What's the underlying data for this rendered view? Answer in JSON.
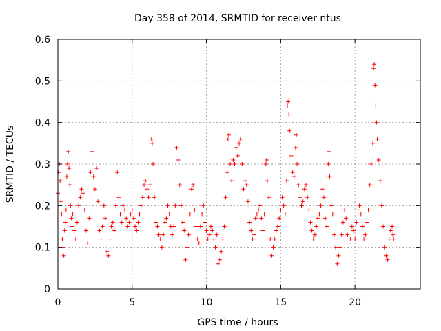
{
  "chart_data": {
    "type": "scatter",
    "title": "Day 358 of 2014, SRMTID for receiver ntus",
    "xlabel": "GPS time / hours",
    "ylabel": "SRMTID / TECUs",
    "xlim": [
      0,
      24.4
    ],
    "ylim": [
      0,
      0.6
    ],
    "xticks": [
      0,
      5,
      10,
      15,
      20
    ],
    "yticks": [
      0,
      0.1,
      0.2,
      0.3,
      0.4,
      0.5,
      0.6
    ],
    "xtick_labels": [
      "0",
      "5",
      "10",
      "15",
      "20"
    ],
    "ytick_labels": [
      "0",
      "0.1",
      "0.2",
      "0.3",
      "0.4",
      "0.5",
      "0.6"
    ],
    "grid": true,
    "marker": "+",
    "marker_color": "#ff0000",
    "series": [
      {
        "name": "ntus",
        "points": [
          [
            0.0,
            0.23
          ],
          [
            0.05,
            0.28
          ],
          [
            0.1,
            0.3
          ],
          [
            0.15,
            0.26
          ],
          [
            0.2,
            0.21
          ],
          [
            0.25,
            0.18
          ],
          [
            0.3,
            0.12
          ],
          [
            0.35,
            0.1
          ],
          [
            0.4,
            0.08
          ],
          [
            0.45,
            0.14
          ],
          [
            0.5,
            0.16
          ],
          [
            0.55,
            0.19
          ],
          [
            0.6,
            0.27
          ],
          [
            0.65,
            0.3
          ],
          [
            0.7,
            0.33
          ],
          [
            0.75,
            0.29
          ],
          [
            0.8,
            0.25
          ],
          [
            0.85,
            0.2
          ],
          [
            0.9,
            0.17
          ],
          [
            0.95,
            0.15
          ],
          [
            1.0,
            0.18
          ],
          [
            1.1,
            0.14
          ],
          [
            1.2,
            0.12
          ],
          [
            1.3,
            0.16
          ],
          [
            1.4,
            0.2
          ],
          [
            1.5,
            0.22
          ],
          [
            1.6,
            0.24
          ],
          [
            1.7,
            0.23
          ],
          [
            1.8,
            0.19
          ],
          [
            1.9,
            0.14
          ],
          [
            2.0,
            0.11
          ],
          [
            2.1,
            0.17
          ],
          [
            2.2,
            0.28
          ],
          [
            2.3,
            0.33
          ],
          [
            2.4,
            0.27
          ],
          [
            2.5,
            0.24
          ],
          [
            2.6,
            0.29
          ],
          [
            2.7,
            0.21
          ],
          [
            2.8,
            0.14
          ],
          [
            2.9,
            0.12
          ],
          [
            3.0,
            0.15
          ],
          [
            3.1,
            0.2
          ],
          [
            3.2,
            0.17
          ],
          [
            3.3,
            0.09
          ],
          [
            3.4,
            0.08
          ],
          [
            3.5,
            0.12
          ],
          [
            3.6,
            0.15
          ],
          [
            3.7,
            0.16
          ],
          [
            3.8,
            0.14
          ],
          [
            3.9,
            0.2
          ],
          [
            4.0,
            0.28
          ],
          [
            4.1,
            0.22
          ],
          [
            4.2,
            0.18
          ],
          [
            4.3,
            0.16
          ],
          [
            4.4,
            0.2
          ],
          [
            4.5,
            0.19
          ],
          [
            4.6,
            0.17
          ],
          [
            4.7,
            0.15
          ],
          [
            4.8,
            0.16
          ],
          [
            4.9,
            0.18
          ],
          [
            5.0,
            0.19
          ],
          [
            5.1,
            0.17
          ],
          [
            5.2,
            0.15
          ],
          [
            5.3,
            0.14
          ],
          [
            5.4,
            0.16
          ],
          [
            5.5,
            0.18
          ],
          [
            5.6,
            0.2
          ],
          [
            5.7,
            0.22
          ],
          [
            5.8,
            0.25
          ],
          [
            5.9,
            0.26
          ],
          [
            6.0,
            0.24
          ],
          [
            6.1,
            0.22
          ],
          [
            6.2,
            0.25
          ],
          [
            6.3,
            0.36
          ],
          [
            6.35,
            0.35
          ],
          [
            6.4,
            0.3
          ],
          [
            6.5,
            0.22
          ],
          [
            6.6,
            0.16
          ],
          [
            6.7,
            0.15
          ],
          [
            6.8,
            0.13
          ],
          [
            6.9,
            0.12
          ],
          [
            7.0,
            0.1
          ],
          [
            7.1,
            0.13
          ],
          [
            7.2,
            0.16
          ],
          [
            7.3,
            0.17
          ],
          [
            7.4,
            0.2
          ],
          [
            7.5,
            0.18
          ],
          [
            7.6,
            0.15
          ],
          [
            7.7,
            0.13
          ],
          [
            7.8,
            0.15
          ],
          [
            7.9,
            0.2
          ],
          [
            8.0,
            0.34
          ],
          [
            8.1,
            0.31
          ],
          [
            8.2,
            0.25
          ],
          [
            8.3,
            0.2
          ],
          [
            8.4,
            0.16
          ],
          [
            8.5,
            0.14
          ],
          [
            8.6,
            0.07
          ],
          [
            8.7,
            0.1
          ],
          [
            8.8,
            0.13
          ],
          [
            8.9,
            0.18
          ],
          [
            9.0,
            0.24
          ],
          [
            9.1,
            0.25
          ],
          [
            9.2,
            0.19
          ],
          [
            9.3,
            0.15
          ],
          [
            9.4,
            0.12
          ],
          [
            9.5,
            0.11
          ],
          [
            9.6,
            0.15
          ],
          [
            9.7,
            0.18
          ],
          [
            9.8,
            0.2
          ],
          [
            9.9,
            0.16
          ],
          [
            10.0,
            0.14
          ],
          [
            10.1,
            0.12
          ],
          [
            10.2,
            0.13
          ],
          [
            10.3,
            0.15
          ],
          [
            10.4,
            0.14
          ],
          [
            10.5,
            0.12
          ],
          [
            10.6,
            0.1
          ],
          [
            10.7,
            0.13
          ],
          [
            10.8,
            0.06
          ],
          [
            10.9,
            0.07
          ],
          [
            11.0,
            0.09
          ],
          [
            11.1,
            0.12
          ],
          [
            11.2,
            0.15
          ],
          [
            11.3,
            0.22
          ],
          [
            11.4,
            0.28
          ],
          [
            11.45,
            0.36
          ],
          [
            11.5,
            0.37
          ],
          [
            11.6,
            0.3
          ],
          [
            11.7,
            0.26
          ],
          [
            11.8,
            0.31
          ],
          [
            11.9,
            0.3
          ],
          [
            12.0,
            0.34
          ],
          [
            12.1,
            0.32
          ],
          [
            12.2,
            0.35
          ],
          [
            12.3,
            0.36
          ],
          [
            12.4,
            0.3
          ],
          [
            12.5,
            0.24
          ],
          [
            12.6,
            0.26
          ],
          [
            12.7,
            0.25
          ],
          [
            12.8,
            0.21
          ],
          [
            12.9,
            0.16
          ],
          [
            13.0,
            0.14
          ],
          [
            13.1,
            0.12
          ],
          [
            13.2,
            0.13
          ],
          [
            13.3,
            0.17
          ],
          [
            13.4,
            0.18
          ],
          [
            13.5,
            0.19
          ],
          [
            13.6,
            0.2
          ],
          [
            13.7,
            0.17
          ],
          [
            13.8,
            0.14
          ],
          [
            13.9,
            0.18
          ],
          [
            14.0,
            0.3
          ],
          [
            14.05,
            0.31
          ],
          [
            14.1,
            0.26
          ],
          [
            14.2,
            0.22
          ],
          [
            14.3,
            0.12
          ],
          [
            14.4,
            0.08
          ],
          [
            14.5,
            0.1
          ],
          [
            14.6,
            0.12
          ],
          [
            14.7,
            0.14
          ],
          [
            14.8,
            0.15
          ],
          [
            14.9,
            0.17
          ],
          [
            15.0,
            0.19
          ],
          [
            15.1,
            0.22
          ],
          [
            15.2,
            0.2
          ],
          [
            15.3,
            0.18
          ],
          [
            15.4,
            0.26
          ],
          [
            15.45,
            0.44
          ],
          [
            15.5,
            0.45
          ],
          [
            15.55,
            0.42
          ],
          [
            15.6,
            0.38
          ],
          [
            15.7,
            0.32
          ],
          [
            15.8,
            0.28
          ],
          [
            15.9,
            0.27
          ],
          [
            16.0,
            0.34
          ],
          [
            16.05,
            0.37
          ],
          [
            16.1,
            0.3
          ],
          [
            16.2,
            0.25
          ],
          [
            16.3,
            0.22
          ],
          [
            16.4,
            0.2
          ],
          [
            16.5,
            0.21
          ],
          [
            16.6,
            0.24
          ],
          [
            16.7,
            0.25
          ],
          [
            16.8,
            0.22
          ],
          [
            16.9,
            0.19
          ],
          [
            17.0,
            0.16
          ],
          [
            17.1,
            0.14
          ],
          [
            17.2,
            0.12
          ],
          [
            17.3,
            0.13
          ],
          [
            17.4,
            0.15
          ],
          [
            17.5,
            0.17
          ],
          [
            17.6,
            0.18
          ],
          [
            17.7,
            0.2
          ],
          [
            17.8,
            0.24
          ],
          [
            17.9,
            0.22
          ],
          [
            18.0,
            0.17
          ],
          [
            18.1,
            0.15
          ],
          [
            18.2,
            0.3
          ],
          [
            18.25,
            0.33
          ],
          [
            18.3,
            0.27
          ],
          [
            18.4,
            0.2
          ],
          [
            18.5,
            0.18
          ],
          [
            18.6,
            0.13
          ],
          [
            18.7,
            0.1
          ],
          [
            18.8,
            0.06
          ],
          [
            18.9,
            0.08
          ],
          [
            19.0,
            0.1
          ],
          [
            19.1,
            0.13
          ],
          [
            19.2,
            0.16
          ],
          [
            19.3,
            0.19
          ],
          [
            19.4,
            0.17
          ],
          [
            19.5,
            0.13
          ],
          [
            19.6,
            0.11
          ],
          [
            19.7,
            0.12
          ],
          [
            19.8,
            0.15
          ],
          [
            19.9,
            0.14
          ],
          [
            20.0,
            0.12
          ],
          [
            20.1,
            0.16
          ],
          [
            20.2,
            0.19
          ],
          [
            20.3,
            0.2
          ],
          [
            20.4,
            0.18
          ],
          [
            20.5,
            0.15
          ],
          [
            20.6,
            0.12
          ],
          [
            20.7,
            0.13
          ],
          [
            20.8,
            0.16
          ],
          [
            20.9,
            0.19
          ],
          [
            21.0,
            0.25
          ],
          [
            21.1,
            0.3
          ],
          [
            21.2,
            0.35
          ],
          [
            21.25,
            0.53
          ],
          [
            21.3,
            0.54
          ],
          [
            21.35,
            0.49
          ],
          [
            21.4,
            0.44
          ],
          [
            21.45,
            0.4
          ],
          [
            21.5,
            0.36
          ],
          [
            21.6,
            0.31
          ],
          [
            21.7,
            0.26
          ],
          [
            21.8,
            0.2
          ],
          [
            21.9,
            0.15
          ],
          [
            22.0,
            0.1
          ],
          [
            22.1,
            0.08
          ],
          [
            22.2,
            0.07
          ],
          [
            22.3,
            0.12
          ],
          [
            22.4,
            0.14
          ],
          [
            22.5,
            0.15
          ],
          [
            22.55,
            0.13
          ],
          [
            22.6,
            0.12
          ]
        ]
      }
    ]
  }
}
